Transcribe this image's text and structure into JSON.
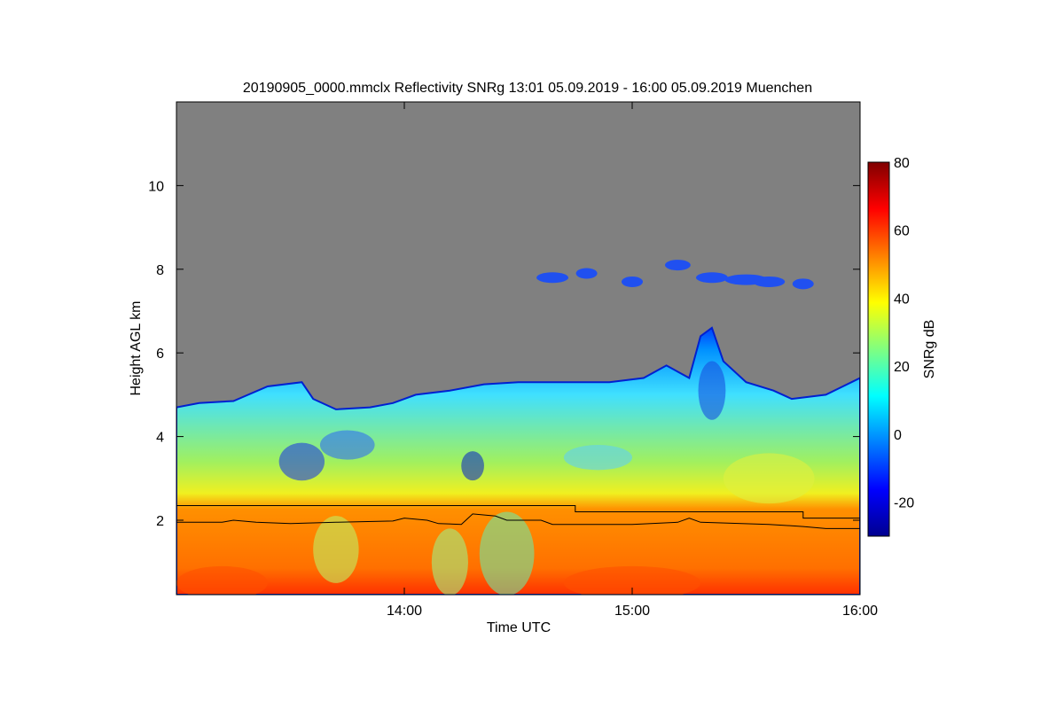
{
  "chart_data": {
    "type": "heatmap",
    "title": "20190905_0000.mmclx Reflectivity SNRg   13:01 05.09.2019 - 16:00 05.09.2019 Muenchen",
    "xlabel": "Time UTC",
    "ylabel": "Height AGL km",
    "xlim_hours": [
      13.0,
      16.0
    ],
    "ylim_km": [
      0.22,
      12.0
    ],
    "x_ticks": [
      {
        "value": 14,
        "label": "14:00"
      },
      {
        "value": 15,
        "label": "15:00"
      },
      {
        "value": 16,
        "label": "16:00"
      }
    ],
    "y_ticks": [
      {
        "value": 2,
        "label": "2"
      },
      {
        "value": 4,
        "label": "4"
      },
      {
        "value": 6,
        "label": "6"
      },
      {
        "value": 8,
        "label": "8"
      },
      {
        "value": 10,
        "label": "10"
      }
    ],
    "colorbar": {
      "label": "SNRg dB",
      "range": [
        -30,
        80
      ],
      "ticks": [
        {
          "value": -20,
          "label": "-20"
        },
        {
          "value": 0,
          "label": "0"
        },
        {
          "value": 20,
          "label": "20"
        },
        {
          "value": 40,
          "label": "40"
        },
        {
          "value": 60,
          "label": "60"
        },
        {
          "value": 80,
          "label": "80"
        }
      ],
      "colormap": [
        "#00008f",
        "#0000ff",
        "#0080ff",
        "#00ffff",
        "#80ff80",
        "#ffff00",
        "#ff8000",
        "#ff0000",
        "#800000"
      ]
    },
    "background_color": "#808080",
    "echo_top_km": [
      [
        13.0,
        4.7
      ],
      [
        13.1,
        4.8
      ],
      [
        13.25,
        4.85
      ],
      [
        13.4,
        5.2
      ],
      [
        13.55,
        5.3
      ],
      [
        13.6,
        4.9
      ],
      [
        13.7,
        4.65
      ],
      [
        13.85,
        4.7
      ],
      [
        13.95,
        4.8
      ],
      [
        14.05,
        5.0
      ],
      [
        14.2,
        5.1
      ],
      [
        14.35,
        5.25
      ],
      [
        14.5,
        5.3
      ],
      [
        14.7,
        5.3
      ],
      [
        14.9,
        5.3
      ],
      [
        15.05,
        5.4
      ],
      [
        15.15,
        5.7
      ],
      [
        15.25,
        5.4
      ],
      [
        15.3,
        6.4
      ],
      [
        15.35,
        6.6
      ],
      [
        15.4,
        5.8
      ],
      [
        15.5,
        5.3
      ],
      [
        15.62,
        5.1
      ],
      [
        15.7,
        4.9
      ],
      [
        15.85,
        5.0
      ],
      [
        16.0,
        5.4
      ]
    ],
    "upper_cloud_km": [
      [
        14.65,
        7.8,
        0.15
      ],
      [
        14.8,
        7.9,
        0.1
      ],
      [
        15.0,
        7.7,
        0.1
      ],
      [
        15.2,
        8.1,
        0.12
      ],
      [
        15.35,
        7.8,
        0.15
      ],
      [
        15.5,
        7.75,
        0.2
      ],
      [
        15.6,
        7.7,
        0.15
      ],
      [
        15.75,
        7.65,
        0.1
      ]
    ],
    "line_upper_km": [
      [
        13.0,
        2.35
      ],
      [
        14.75,
        2.35
      ],
      [
        14.75,
        2.2
      ],
      [
        15.75,
        2.2
      ],
      [
        15.75,
        2.05
      ],
      [
        16.0,
        2.05
      ]
    ],
    "line_lower_km": [
      [
        13.0,
        1.95
      ],
      [
        13.2,
        1.95
      ],
      [
        13.25,
        2.0
      ],
      [
        13.35,
        1.95
      ],
      [
        13.5,
        1.92
      ],
      [
        13.7,
        1.95
      ],
      [
        13.95,
        1.98
      ],
      [
        14.0,
        2.05
      ],
      [
        14.1,
        2.0
      ],
      [
        14.15,
        1.92
      ],
      [
        14.25,
        1.9
      ],
      [
        14.3,
        2.15
      ],
      [
        14.4,
        2.1
      ],
      [
        14.45,
        2.0
      ],
      [
        14.6,
        2.0
      ],
      [
        14.65,
        1.9
      ],
      [
        15.0,
        1.9
      ],
      [
        15.2,
        1.95
      ],
      [
        15.25,
        2.05
      ],
      [
        15.3,
        1.95
      ],
      [
        15.6,
        1.9
      ],
      [
        15.75,
        1.85
      ],
      [
        15.85,
        1.8
      ],
      [
        16.0,
        1.8
      ]
    ]
  }
}
